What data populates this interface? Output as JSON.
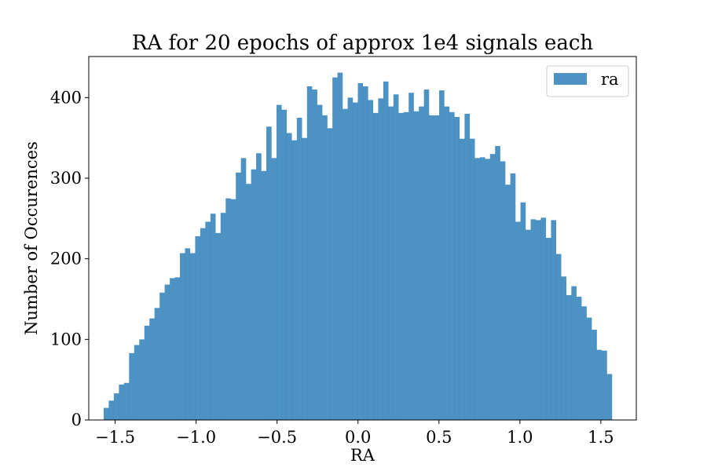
{
  "chart_data": {
    "type": "bar",
    "title": "RA for 20 epochs of approx 1e4 signals each",
    "xlabel": "RA",
    "ylabel": "Number of Occurences",
    "xlim": [
      -1.663,
      1.719
    ],
    "ylim": [
      0,
      451
    ],
    "bins": {
      "start": -1.571,
      "width": 0.0314,
      "count": 100
    },
    "xticks": [
      {
        "value": -1.5,
        "label": "−1.5"
      },
      {
        "value": -1.0,
        "label": "−1.0"
      },
      {
        "value": -0.5,
        "label": "−0.5"
      },
      {
        "value": 0.0,
        "label": "0.0"
      },
      {
        "value": 0.5,
        "label": "0.5"
      },
      {
        "value": 1.0,
        "label": "1.0"
      },
      {
        "value": 1.5,
        "label": "1.5"
      }
    ],
    "yticks": [
      {
        "value": 0,
        "label": "0"
      },
      {
        "value": 100,
        "label": "100"
      },
      {
        "value": 200,
        "label": "200"
      },
      {
        "value": 300,
        "label": "300"
      },
      {
        "value": 400,
        "label": "400"
      }
    ],
    "series": [
      {
        "name": "ra",
        "color": "#1f77b4",
        "alpha": 0.8,
        "values": [
          15,
          24,
          33,
          44,
          46,
          83,
          93,
          100,
          117,
          126,
          139,
          158,
          168,
          176,
          177,
          207,
          213,
          207,
          228,
          238,
          246,
          256,
          232,
          257,
          275,
          274,
          307,
          325,
          293,
          311,
          331,
          309,
          364,
          325,
          391,
          385,
          356,
          347,
          375,
          350,
          414,
          410,
          391,
          378,
          362,
          425,
          431,
          386,
          400,
          394,
          418,
          414,
          397,
          381,
          399,
          420,
          389,
          404,
          381,
          382,
          406,
          383,
          389,
          410,
          378,
          378,
          409,
          389,
          382,
          376,
          349,
          380,
          349,
          325,
          326,
          324,
          330,
          340,
          321,
          292,
          306,
          246,
          270,
          236,
          249,
          248,
          251,
          226,
          248,
          206,
          178,
          155,
          166,
          153,
          141,
          127,
          112,
          87,
          86,
          57
        ]
      }
    ],
    "legend": {
      "position": "top-right"
    }
  }
}
